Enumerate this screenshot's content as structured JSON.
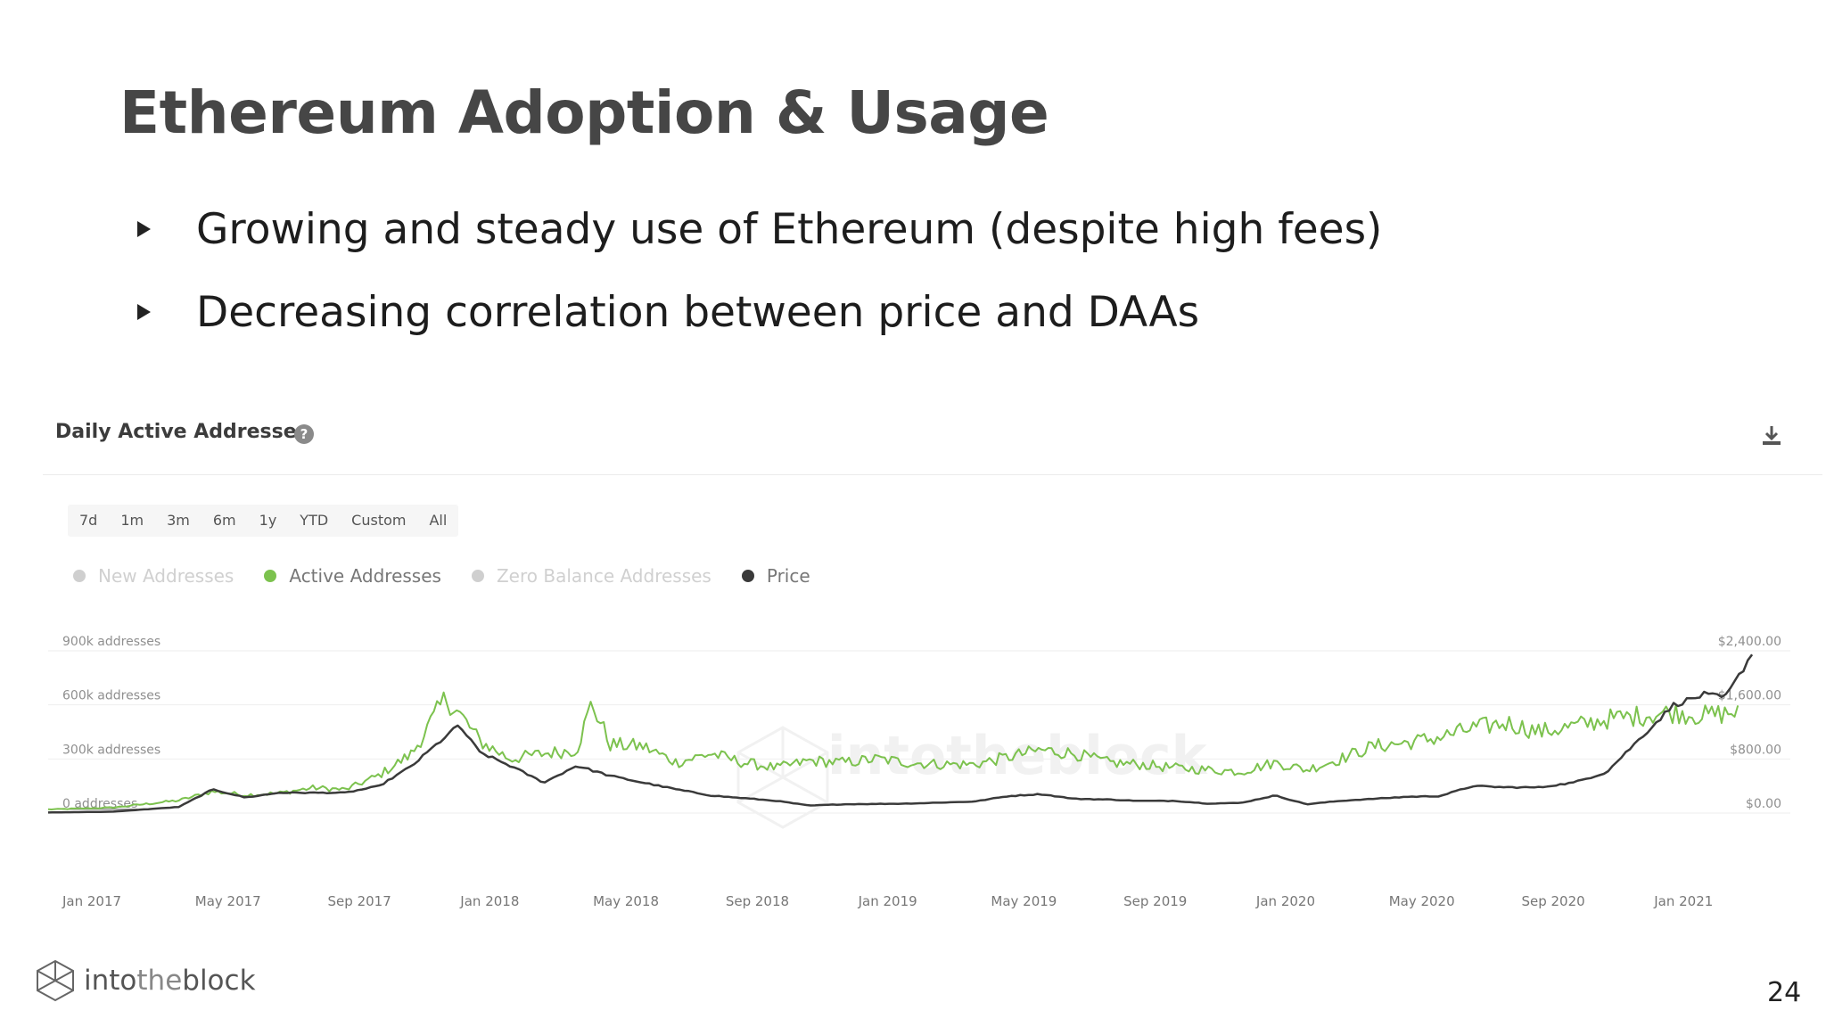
{
  "slide": {
    "title": "Ethereum Adoption & Usage",
    "bullets": [
      "Growing and steady use of Ethereum (despite high fees)",
      "Decreasing correlation between price and DAAs"
    ],
    "page_number": "24",
    "brand": {
      "part1": "into",
      "part2": "the",
      "part3": "block"
    }
  },
  "widget": {
    "title": "Daily Active Addresses",
    "help_icon": "question-circle-icon",
    "download_icon": "download-icon",
    "ranges": [
      "7d",
      "1m",
      "3m",
      "6m",
      "1y",
      "YTD",
      "Custom",
      "All"
    ],
    "legend": [
      {
        "label": "New Addresses",
        "color": "#cfcfcf",
        "text_color": "#d0d0d0"
      },
      {
        "label": "Active Addresses",
        "color": "#7cc24e",
        "text_color": "#777777"
      },
      {
        "label": "Zero Balance Addresses",
        "color": "#cfcfcf",
        "text_color": "#d0d0d0"
      },
      {
        "label": "Price",
        "color": "#3a3a3a",
        "text_color": "#777777"
      }
    ],
    "watermark": "intotheblock"
  },
  "chart_data": {
    "type": "line",
    "title": "Daily Active Addresses",
    "x_ticks": [
      "Jan 2017",
      "May 2017",
      "Sep 2017",
      "Jan 2018",
      "May 2018",
      "Sep 2018",
      "Jan 2019",
      "May 2019",
      "Sep 2019",
      "Jan 2020",
      "May 2020",
      "Sep 2020",
      "Jan 2021"
    ],
    "y_left_ticks": [
      "0 addresses",
      "300k addresses",
      "600k addresses",
      "900k addresses"
    ],
    "y_left_range": [
      0,
      900000
    ],
    "y_right_ticks": [
      "$0.00",
      "$800.00",
      "$1,600.00",
      "$2,400.00"
    ],
    "y_right_range": [
      0,
      2400
    ],
    "grid": true,
    "series": [
      {
        "name": "Active Addresses",
        "color": "#7cc24e",
        "axis": "left",
        "points": [
          [
            "2017-01-01",
            20000
          ],
          [
            "2017-03-01",
            30000
          ],
          [
            "2017-05-01",
            70000
          ],
          [
            "2017-06-01",
            120000
          ],
          [
            "2017-07-01",
            100000
          ],
          [
            "2017-08-01",
            110000
          ],
          [
            "2017-09-01",
            140000
          ],
          [
            "2017-10-01",
            130000
          ],
          [
            "2017-11-01",
            210000
          ],
          [
            "2017-12-01",
            330000
          ],
          [
            "2018-01-01",
            640000
          ],
          [
            "2018-01-20",
            500000
          ],
          [
            "2018-02-01",
            400000
          ],
          [
            "2018-03-01",
            300000
          ],
          [
            "2018-04-01",
            330000
          ],
          [
            "2018-05-01",
            350000
          ],
          [
            "2018-05-15",
            610000
          ],
          [
            "2018-06-01",
            380000
          ],
          [
            "2018-07-01",
            370000
          ],
          [
            "2018-08-01",
            280000
          ],
          [
            "2018-09-01",
            330000
          ],
          [
            "2018-10-01",
            280000
          ],
          [
            "2018-11-01",
            250000
          ],
          [
            "2018-12-01",
            290000
          ],
          [
            "2019-01-01",
            280000
          ],
          [
            "2019-02-01",
            300000
          ],
          [
            "2019-03-01",
            280000
          ],
          [
            "2019-04-01",
            270000
          ],
          [
            "2019-05-01",
            270000
          ],
          [
            "2019-06-01",
            310000
          ],
          [
            "2019-07-01",
            350000
          ],
          [
            "2019-08-01",
            330000
          ],
          [
            "2019-09-01",
            280000
          ],
          [
            "2019-10-01",
            270000
          ],
          [
            "2019-11-01",
            250000
          ],
          [
            "2019-12-01",
            240000
          ],
          [
            "2020-01-01",
            230000
          ],
          [
            "2020-02-01",
            280000
          ],
          [
            "2020-03-01",
            240000
          ],
          [
            "2020-04-01",
            300000
          ],
          [
            "2020-05-01",
            370000
          ],
          [
            "2020-06-01",
            390000
          ],
          [
            "2020-07-01",
            420000
          ],
          [
            "2020-08-01",
            470000
          ],
          [
            "2020-09-01",
            500000
          ],
          [
            "2020-10-01",
            450000
          ],
          [
            "2020-11-01",
            480000
          ],
          [
            "2020-12-01",
            520000
          ],
          [
            "2021-01-01",
            540000
          ],
          [
            "2021-02-01",
            560000
          ],
          [
            "2021-03-01",
            540000
          ],
          [
            "2021-04-01",
            560000
          ]
        ]
      },
      {
        "name": "Price",
        "color": "#3a3a3a",
        "axis": "right",
        "points": [
          [
            "2017-01-01",
            8
          ],
          [
            "2017-03-01",
            20
          ],
          [
            "2017-05-01",
            90
          ],
          [
            "2017-06-01",
            350
          ],
          [
            "2017-07-01",
            230
          ],
          [
            "2017-08-01",
            300
          ],
          [
            "2017-09-01",
            300
          ],
          [
            "2017-10-01",
            300
          ],
          [
            "2017-11-01",
            400
          ],
          [
            "2017-12-01",
            700
          ],
          [
            "2018-01-13",
            1300
          ],
          [
            "2018-02-01",
            900
          ],
          [
            "2018-03-01",
            700
          ],
          [
            "2018-04-01",
            450
          ],
          [
            "2018-05-01",
            700
          ],
          [
            "2018-06-01",
            550
          ],
          [
            "2018-07-01",
            450
          ],
          [
            "2018-08-01",
            350
          ],
          [
            "2018-09-01",
            260
          ],
          [
            "2018-10-01",
            220
          ],
          [
            "2018-11-01",
            180
          ],
          [
            "2018-12-01",
            110
          ],
          [
            "2019-01-01",
            130
          ],
          [
            "2019-03-01",
            140
          ],
          [
            "2019-05-01",
            170
          ],
          [
            "2019-06-01",
            250
          ],
          [
            "2019-07-01",
            280
          ],
          [
            "2019-08-01",
            210
          ],
          [
            "2019-09-01",
            200
          ],
          [
            "2019-10-01",
            180
          ],
          [
            "2019-11-01",
            180
          ],
          [
            "2019-12-01",
            140
          ],
          [
            "2020-01-01",
            150
          ],
          [
            "2020-02-01",
            260
          ],
          [
            "2020-03-01",
            130
          ],
          [
            "2020-04-01",
            180
          ],
          [
            "2020-05-01",
            210
          ],
          [
            "2020-06-01",
            240
          ],
          [
            "2020-07-01",
            250
          ],
          [
            "2020-08-01",
            400
          ],
          [
            "2020-09-01",
            380
          ],
          [
            "2020-10-01",
            380
          ],
          [
            "2020-11-01",
            450
          ],
          [
            "2020-12-01",
            600
          ],
          [
            "2021-01-01",
            1100
          ],
          [
            "2021-02-01",
            1600
          ],
          [
            "2021-03-01",
            1750
          ],
          [
            "2021-03-20",
            1700
          ],
          [
            "2021-04-01",
            2000
          ],
          [
            "2021-04-15",
            2400
          ]
        ]
      }
    ]
  }
}
